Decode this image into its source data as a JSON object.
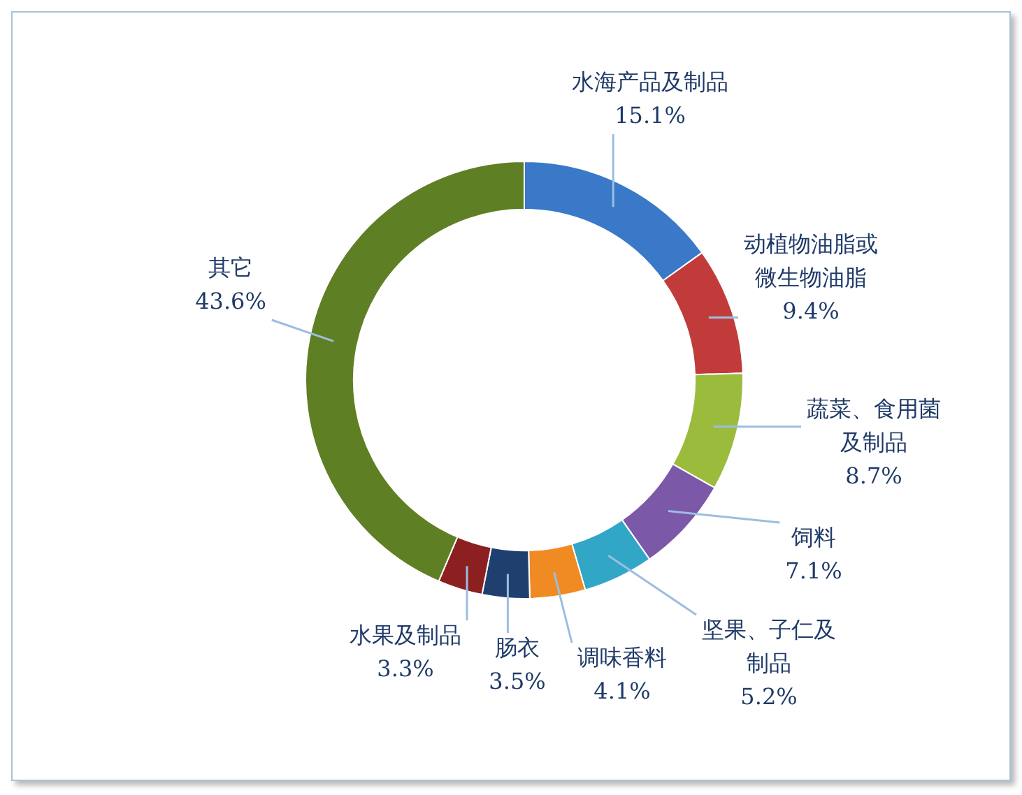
{
  "chart_data": {
    "type": "donut",
    "categories": [
      "水海产品及制品",
      "动植物油脂或微生物油脂",
      "蔬菜、食用菌及制品",
      "饲料",
      "坚果、子仁及制品",
      "调味香料",
      "肠衣",
      "水果及制品",
      "其它"
    ],
    "values": [
      15.1,
      9.4,
      8.7,
      7.1,
      5.2,
      4.1,
      3.5,
      3.3,
      43.6
    ],
    "value_labels": [
      "15.1%",
      "9.4%",
      "8.7%",
      "7.1%",
      "5.2%",
      "4.1%",
      "3.5%",
      "3.3%",
      "43.6%"
    ],
    "colors": [
      "#3a78c8",
      "#c23b3b",
      "#9bbb3c",
      "#7b58a8",
      "#32a6c6",
      "#f08a22",
      "#1f3f6e",
      "#8c1f1f",
      "#5f7f24"
    ],
    "legend": false
  }
}
